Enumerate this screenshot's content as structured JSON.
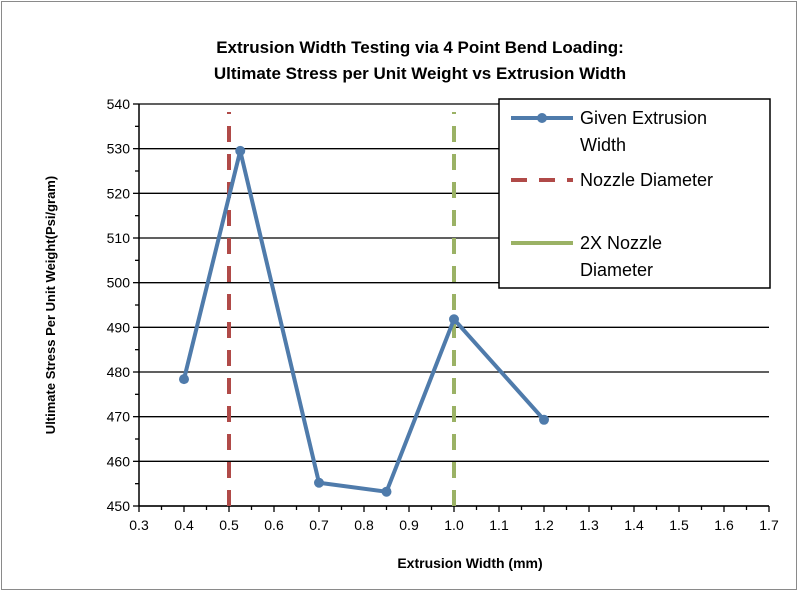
{
  "chart_data": {
    "type": "line",
    "title": [
      "Extrusion Width Testing via 4 Point Bend Loading:",
      "Ultimate Stress  per Unit Weight vs Extrusion Width"
    ],
    "xlabel": "Extrusion Width (mm)",
    "ylabel": "Ultimate Stress Per Unit Weight(Psi/gram)",
    "xlim": [
      0.3,
      1.7
    ],
    "ylim": [
      450,
      540
    ],
    "xticks": [
      "0.3",
      "0.4",
      "0.5",
      "0.6",
      "0.7",
      "0.8",
      "0.9",
      "1.0",
      "1.1",
      "1.2",
      "1.3",
      "1.4",
      "1.5",
      "1.6",
      "1.7"
    ],
    "yticks": [
      "450",
      "460",
      "470",
      "480",
      "490",
      "500",
      "510",
      "520",
      "530",
      "540"
    ],
    "grid": "horizontal",
    "legend_position": "top-right",
    "series": [
      {
        "name": "Given Extrusion Width",
        "color": "#4f7bab",
        "style": "line-marker",
        "x": [
          0.4,
          0.525,
          0.7,
          0.85,
          1.0,
          1.2
        ],
        "y": [
          478.4,
          529.5,
          455.2,
          453.2,
          491.8,
          469.3
        ]
      },
      {
        "name": "Nozzle Diameter",
        "color": "#b04a48",
        "style": "dashed-vertical",
        "x": [
          0.5,
          0.5
        ],
        "y": [
          450,
          540
        ]
      },
      {
        "name": "2X Nozzle Diameter",
        "color": "#9bb265",
        "style": "dashed-vertical",
        "x": [
          1.0,
          1.0
        ],
        "y": [
          450,
          540
        ]
      }
    ],
    "legend_labels": [
      [
        "Given Extrusion",
        "Width"
      ],
      [
        "Nozzle Diameter"
      ],
      [
        "2X Nozzle",
        "Diameter"
      ]
    ]
  }
}
